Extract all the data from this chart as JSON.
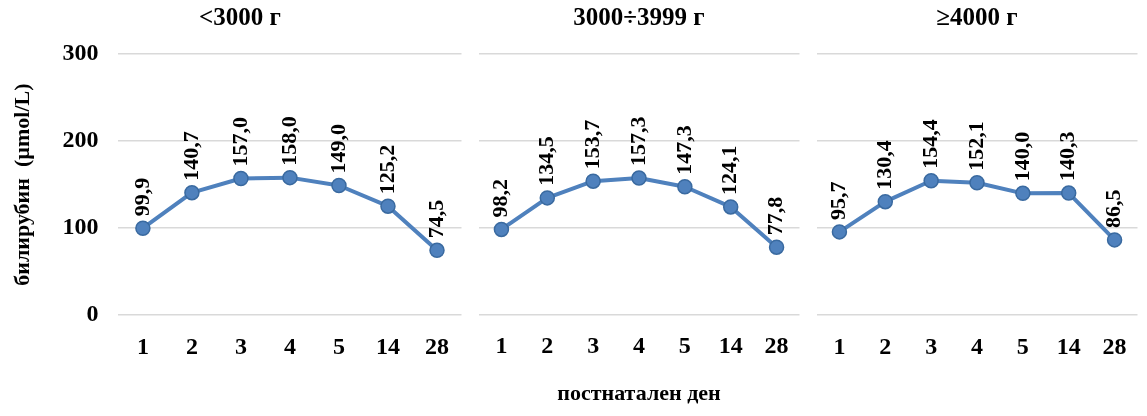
{
  "chart_data": [
    {
      "type": "line",
      "title": "<3000 г",
      "ylabel": "билирубин  (µmol/L)",
      "categories": [
        "1",
        "2",
        "3",
        "4",
        "5",
        "14",
        "28"
      ],
      "series": [
        {
          "color": "#4f81bd",
          "values": [
            99.9,
            140.7,
            157.0,
            158.0,
            149.0,
            125.2,
            74.5
          ]
        }
      ],
      "value_labels": [
        "99,9",
        "140,7",
        "157,0",
        "158,0",
        "149,0",
        "125,2",
        "74,5"
      ],
      "ylim": [
        0,
        300
      ],
      "yticks": [
        0,
        100,
        200,
        300
      ],
      "grid": "y",
      "legend": false,
      "marker": "circle",
      "line_style": "solid"
    },
    {
      "type": "line",
      "title": "3000÷3999 г",
      "xlabel": "постнатален ден",
      "categories": [
        "1",
        "2",
        "3",
        "4",
        "5",
        "14",
        "28"
      ],
      "series": [
        {
          "color": "#4f81bd",
          "values": [
            98.2,
            134.5,
            153.7,
            157.3,
            147.3,
            124.1,
            77.8
          ]
        }
      ],
      "value_labels": [
        "98,2",
        "134,5",
        "153,7",
        "157,3",
        "147,3",
        "124,1",
        "77,8"
      ],
      "ylim": [
        0,
        300
      ],
      "yticks": [
        0,
        100,
        200,
        300
      ],
      "tick_labels": "x",
      "grid": "y",
      "legend": false,
      "marker": "circle",
      "line_style": "solid"
    },
    {
      "type": "line",
      "title": "≥4000 г",
      "categories": [
        "1",
        "2",
        "3",
        "4",
        "5",
        "14",
        "28"
      ],
      "series": [
        {
          "color": "#4f81bd",
          "values": [
            95.7,
            130.4,
            154.4,
            152.1,
            140.0,
            140.3,
            86.5
          ]
        }
      ],
      "value_labels": [
        "95,7",
        "130,4",
        "154,4",
        "152,1",
        "140,0",
        "140,3",
        "86,5"
      ],
      "ylim": [
        0,
        300
      ],
      "yticks": [
        0,
        100,
        200,
        300
      ],
      "tick_labels": "x",
      "grid": "y",
      "legend": false,
      "marker": "circle",
      "line_style": "solid"
    }
  ]
}
